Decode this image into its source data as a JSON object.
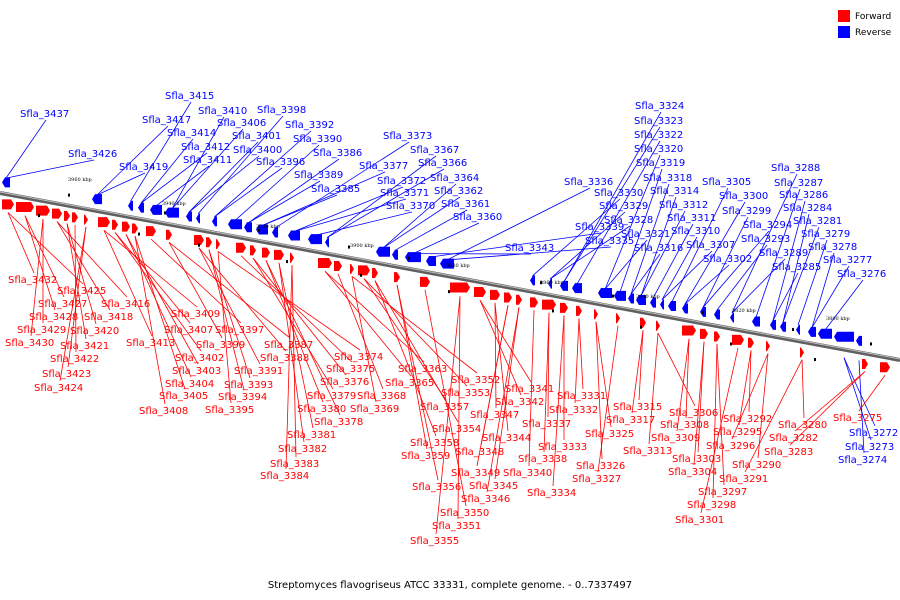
{
  "caption": "Streptomyces flavogriseus ATCC 33331, complete genome. - 0..7337497",
  "legend": {
    "forward": {
      "label": "Forward",
      "color": "#ff0000"
    },
    "reverse": {
      "label": "Reverse",
      "color": "#0000ff"
    }
  },
  "axis_ticks": [
    "3960 kbp",
    "3940 kbp",
    "3920 kbp",
    "3900 kbp",
    "3880 kbp",
    "3860 kbp",
    "3840 kbp",
    "3820 kbp",
    "3800 kbp"
  ],
  "reverse_genes": [
    "Sfla_3437",
    "Sfla_3426",
    "Sfla_3419",
    "Sfla_3417",
    "Sfla_3415",
    "Sfla_3414",
    "Sfla_3412",
    "Sfla_3411",
    "Sfla_3410",
    "Sfla_3406",
    "Sfla_3401",
    "Sfla_3400",
    "Sfla_3398",
    "Sfla_3396",
    "Sfla_3392",
    "Sfla_3390",
    "Sfla_3389",
    "Sfla_3386",
    "Sfla_3385",
    "Sfla_3377",
    "Sfla_3373",
    "Sfla_3372",
    "Sfla_3371",
    "Sfla_3370",
    "Sfla_3367",
    "Sfla_3366",
    "Sfla_3364",
    "Sfla_3362",
    "Sfla_3361",
    "Sfla_3360",
    "Sfla_3343",
    "Sfla_3339",
    "Sfla_3336",
    "Sfla_3335",
    "Sfla_3330",
    "Sfla_3329",
    "Sfla_3328",
    "Sfla_3324",
    "Sfla_3323",
    "Sfla_3322",
    "Sfla_3321",
    "Sfla_3320",
    "Sfla_3319",
    "Sfla_3318",
    "Sfla_3316",
    "Sfla_3314",
    "Sfla_3312",
    "Sfla_3311",
    "Sfla_3310",
    "Sfla_3307",
    "Sfla_3305",
    "Sfla_3302",
    "Sfla_3300",
    "Sfla_3299",
    "Sfla_3294",
    "Sfla_3293",
    "Sfla_3289",
    "Sfla_3288",
    "Sfla_3287",
    "Sfla_3286",
    "Sfla_3285",
    "Sfla_3284",
    "Sfla_3281",
    "Sfla_3279",
    "Sfla_3278",
    "Sfla_3277",
    "Sfla_3276",
    "Sfla_3272",
    "Sfla_3273",
    "Sfla_3274"
  ],
  "forward_genes": [
    "Sfla_3432",
    "Sfla_3425",
    "Sfla_3427",
    "Sfla_3428",
    "Sfla_3429",
    "Sfla_3430",
    "Sfla_3416",
    "Sfla_3418",
    "Sfla_3420",
    "Sfla_3421",
    "Sfla_3422",
    "Sfla_3423",
    "Sfla_3424",
    "Sfla_3413",
    "Sfla_3409",
    "Sfla_3407",
    "Sfla_3402",
    "Sfla_3403",
    "Sfla_3404",
    "Sfla_3405",
    "Sfla_3408",
    "Sfla_3397",
    "Sfla_3399",
    "Sfla_3387",
    "Sfla_3388",
    "Sfla_3391",
    "Sfla_3393",
    "Sfla_3394",
    "Sfla_3395",
    "Sfla_3374",
    "Sfla_3375",
    "Sfla_3376",
    "Sfla_3379",
    "Sfla_3380",
    "Sfla_3378",
    "Sfla_3381",
    "Sfla_3382",
    "Sfla_3383",
    "Sfla_3384",
    "Sfla_3363",
    "Sfla_3365",
    "Sfla_3368",
    "Sfla_3369",
    "Sfla_3352",
    "Sfla_3353",
    "Sfla_3357",
    "Sfla_3354",
    "Sfla_3358",
    "Sfla_3359",
    "Sfla_3356",
    "Sfla_3350",
    "Sfla_3351",
    "Sfla_3355",
    "Sfla_3341",
    "Sfla_3342",
    "Sfla_3347",
    "Sfla_3344",
    "Sfla_3348",
    "Sfla_3349",
    "Sfla_3345",
    "Sfla_3346",
    "Sfla_3340",
    "Sfla_3338",
    "Sfla_3337",
    "Sfla_3333",
    "Sfla_3334",
    "Sfla_3331",
    "Sfla_3332",
    "Sfla_3325",
    "Sfla_3326",
    "Sfla_3327",
    "Sfla_3315",
    "Sfla_3317",
    "Sfla_3313",
    "Sfla_3306",
    "Sfla_3308",
    "Sfla_3309",
    "Sfla_3303",
    "Sfla_3304",
    "Sfla_3297",
    "Sfla_3298",
    "Sfla_3301",
    "Sfla_3292",
    "Sfla_3295",
    "Sfla_3296",
    "Sfla_3290",
    "Sfla_3291",
    "Sfla_3280",
    "Sfla_3282",
    "Sfla_3283",
    "Sfla_3275"
  ]
}
